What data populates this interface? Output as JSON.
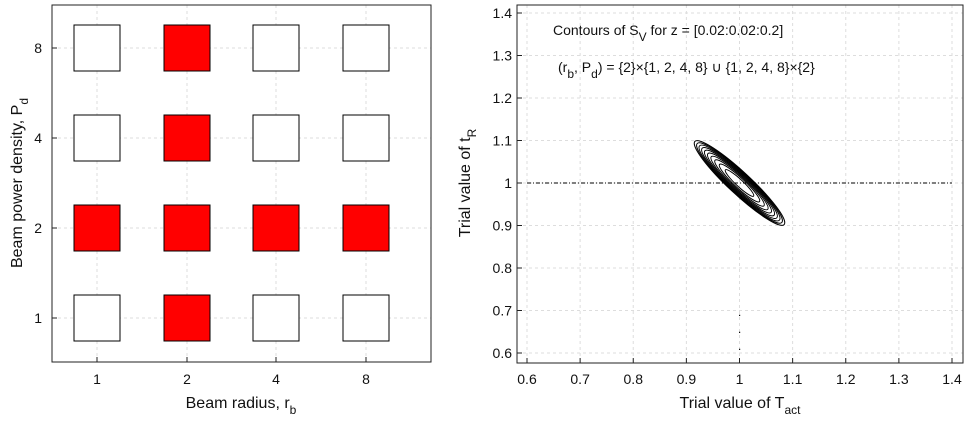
{
  "chart_data": [
    {
      "type": "heatmap",
      "xlabel": "Beam radius, r",
      "xlabel_sub": "b",
      "ylabel": "Beam power density, P",
      "ylabel_sub": "d",
      "xticks": [
        "1",
        "2",
        "4",
        "8"
      ],
      "yticks": [
        "1",
        "2",
        "4",
        "8"
      ],
      "grid": true,
      "cells": [
        {
          "r": "1",
          "P": "8",
          "selected": false
        },
        {
          "r": "2",
          "P": "8",
          "selected": true
        },
        {
          "r": "4",
          "P": "8",
          "selected": false
        },
        {
          "r": "8",
          "P": "8",
          "selected": false
        },
        {
          "r": "1",
          "P": "4",
          "selected": false
        },
        {
          "r": "2",
          "P": "4",
          "selected": true
        },
        {
          "r": "4",
          "P": "4",
          "selected": false
        },
        {
          "r": "8",
          "P": "4",
          "selected": false
        },
        {
          "r": "1",
          "P": "2",
          "selected": true
        },
        {
          "r": "2",
          "P": "2",
          "selected": true
        },
        {
          "r": "4",
          "P": "2",
          "selected": true
        },
        {
          "r": "8",
          "P": "2",
          "selected": true
        },
        {
          "r": "1",
          "P": "1",
          "selected": false
        },
        {
          "r": "2",
          "P": "1",
          "selected": true
        },
        {
          "r": "4",
          "P": "1",
          "selected": false
        },
        {
          "r": "8",
          "P": "1",
          "selected": false
        }
      ],
      "colors": {
        "selected": "#ff0000",
        "unselected": "#ffffff"
      }
    },
    {
      "type": "contour",
      "title_line1_a": "Contours of S",
      "title_line1_sub": "V",
      "title_line1_b": " for z = [0.02:0.02:0.2]",
      "title_line2": "(r_b, P_d) = {2}×{1, 2, 4, 8} ∪ {1, 2, 4, 8}×{2}",
      "title_line2_parts": {
        "a": "(r",
        "b": "b",
        "c": ", P",
        "d": "d",
        "e": ") = {2}×{1, 2, 4, 8} ∪ {1, 2, 4, 8}×{2}"
      },
      "xlabel": "Trial value of T",
      "xlabel_sub": "act",
      "ylabel": "Trial value of t",
      "ylabel_sub": "R",
      "xlim": [
        0.58,
        1.41
      ],
      "ylim": [
        0.58,
        1.41
      ],
      "xticks": [
        "0.6",
        "0.7",
        "0.8",
        "0.9",
        "1",
        "1.1",
        "1.2",
        "1.3",
        "1.4"
      ],
      "yticks": [
        "0.6",
        "0.7",
        "0.8",
        "0.9",
        "1",
        "1.1",
        "1.2",
        "1.3",
        "1.4"
      ],
      "center": [
        1.0,
        1.0
      ],
      "levels": [
        0.02,
        0.04,
        0.06,
        0.08,
        0.1,
        0.12,
        0.14,
        0.16,
        0.18,
        0.2
      ],
      "reference_line_y": 1.0,
      "grid": true
    }
  ]
}
